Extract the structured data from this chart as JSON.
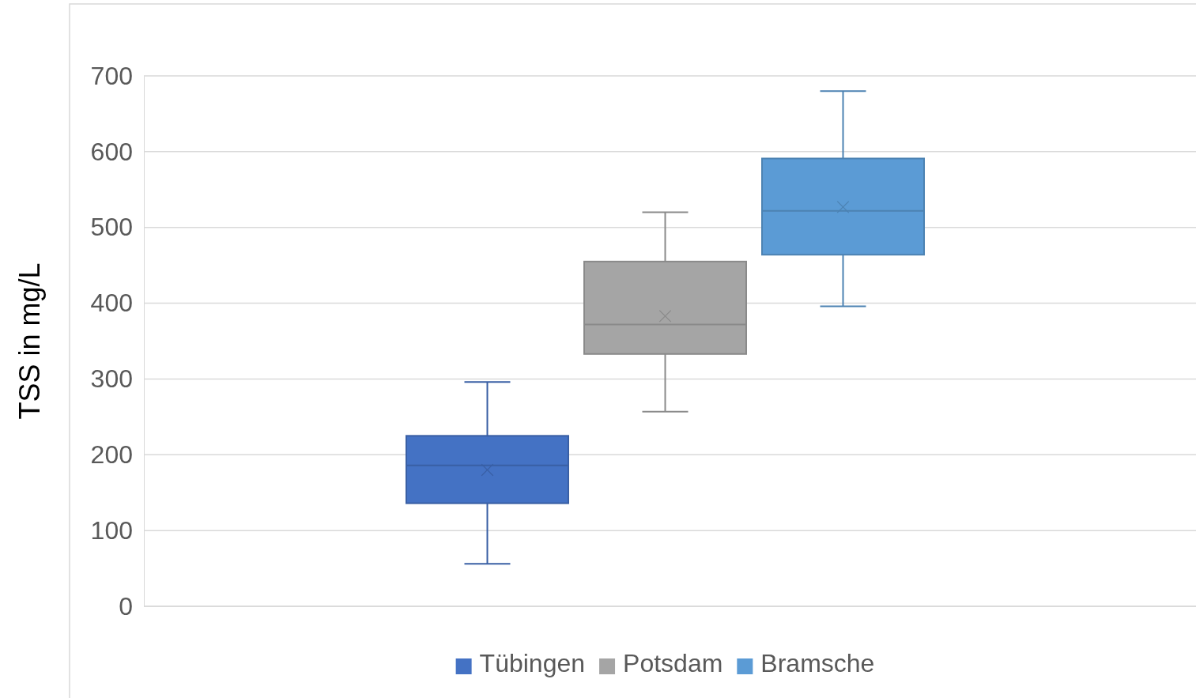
{
  "chart_data": {
    "type": "box",
    "ylabel": "TSS in mg/L",
    "categories": [
      null
    ],
    "ylim": [
      0,
      700
    ],
    "yticks": [
      0,
      100,
      200,
      300,
      400,
      500,
      600,
      700
    ],
    "grid": "y",
    "legend": "bottom",
    "marker": "cross",
    "series": [
      {
        "name": "Tübingen",
        "color": "#4472c4",
        "boxes": [
          {
            "low": 56,
            "q1": 136,
            "median": 186,
            "q3": 225,
            "high": 296,
            "mean": 180
          }
        ]
      },
      {
        "name": "Potsdam",
        "color": "#a5a5a5",
        "boxes": [
          {
            "low": 257,
            "q1": 333,
            "median": 372,
            "q3": 455,
            "high": 520,
            "mean": 383
          }
        ]
      },
      {
        "name": "Bramsche",
        "color": "#5b9bd5",
        "boxes": [
          {
            "low": 396,
            "q1": 464,
            "median": 522,
            "q3": 591,
            "high": 680,
            "mean": 527
          }
        ]
      }
    ]
  }
}
